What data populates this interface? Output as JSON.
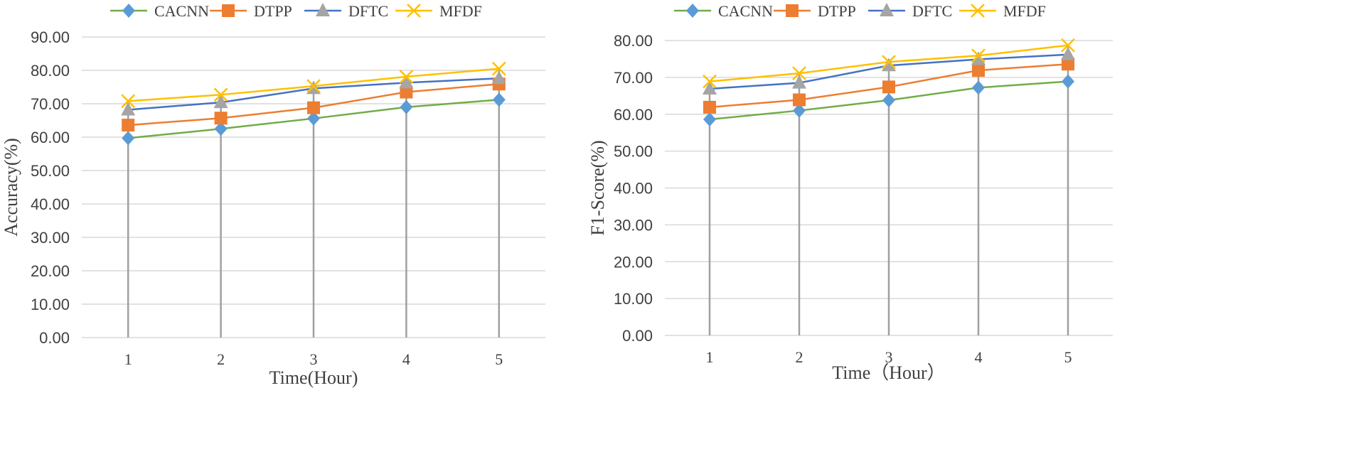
{
  "colors": {
    "CACNN": "#70ad47",
    "DTPP": "#ed7d31",
    "DFTC": "#4472c4",
    "MFDF": "#ffc000",
    "CACNN_marker": "#5b9bd5",
    "DFTC_marker": "#a5a5a5"
  },
  "chart_data": [
    {
      "type": "line",
      "title": "",
      "xlabel": "Time(Hour)",
      "ylabel": "Accuracy(%)",
      "ylim": [
        0,
        90
      ],
      "ytick_step": 10,
      "categories": [
        "1",
        "2",
        "3",
        "4",
        "5"
      ],
      "ytick_labels": [
        "0.00",
        "10.00",
        "20.00",
        "30.00",
        "40.00",
        "50.00",
        "60.00",
        "70.00",
        "80.00",
        "90.00"
      ],
      "legend_position": "top",
      "series": [
        {
          "name": "CACNN",
          "marker": "diamond",
          "values": [
            59.7,
            62.5,
            65.6,
            69.0,
            71.2
          ]
        },
        {
          "name": "DTPP",
          "marker": "square",
          "values": [
            63.6,
            65.7,
            68.8,
            73.5,
            75.9
          ]
        },
        {
          "name": "DFTC",
          "marker": "triangle",
          "values": [
            68.2,
            70.4,
            74.6,
            76.3,
            77.6
          ]
        },
        {
          "name": "MFDF",
          "marker": "x",
          "values": [
            70.8,
            72.7,
            75.3,
            78.1,
            80.5
          ]
        }
      ]
    },
    {
      "type": "line",
      "title": "",
      "xlabel": "Time（Hour）",
      "ylabel": "F1-Score(%)",
      "ylim": [
        0,
        80
      ],
      "ytick_step": 10,
      "categories": [
        "1",
        "2",
        "3",
        "4",
        "5"
      ],
      "ytick_labels": [
        "0.00",
        "10.00",
        "20.00",
        "30.00",
        "40.00",
        "50.00",
        "60.00",
        "70.00",
        "80.00"
      ],
      "legend_position": "top",
      "series": [
        {
          "name": "CACNN",
          "marker": "diamond",
          "values": [
            58.6,
            61.0,
            63.8,
            67.2,
            68.9
          ]
        },
        {
          "name": "DTPP",
          "marker": "square",
          "values": [
            61.9,
            63.9,
            67.4,
            71.9,
            73.6
          ]
        },
        {
          "name": "DFTC",
          "marker": "triangle",
          "values": [
            66.9,
            68.5,
            73.2,
            74.9,
            76.2
          ]
        },
        {
          "name": "MFDF",
          "marker": "x",
          "values": [
            68.9,
            71.1,
            74.2,
            75.9,
            78.7
          ]
        }
      ]
    }
  ]
}
